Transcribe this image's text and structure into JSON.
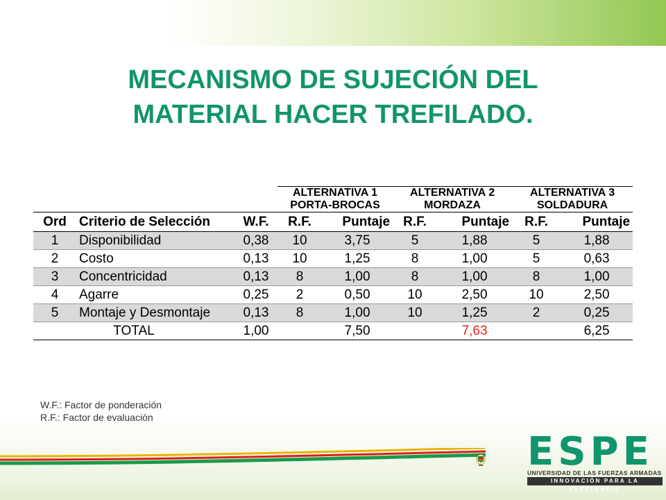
{
  "title": {
    "line1": "MECANISMO DE SUJECIÓN DEL",
    "line2": "MATERIAL HACER TREFILADO."
  },
  "table": {
    "alternatives": [
      {
        "line1": "ALTERNATIVA 1",
        "line2": "PORTA-BROCAS"
      },
      {
        "line1": "ALTERNATIVA 2",
        "line2": "MORDAZA"
      },
      {
        "line1": "ALTERNATIVA 3",
        "line2": "SOLDADURA"
      }
    ],
    "headers": [
      "Ord",
      "Criterio de Selección",
      "W.F.",
      "R.F.",
      "Puntaje",
      "R.F.",
      "Puntaje",
      "R.F.",
      "Puntaje"
    ],
    "rows": [
      [
        "1",
        "Disponibilidad",
        "0,38",
        "10",
        "3,75",
        "5",
        "1,88",
        "5",
        "1,88"
      ],
      [
        "2",
        "Costo",
        "0,13",
        "10",
        "1,25",
        "8",
        "1,00",
        "5",
        "0,63"
      ],
      [
        "3",
        "Concentricidad",
        "0,13",
        "8",
        "1,00",
        "8",
        "1,00",
        "8",
        "1,00"
      ],
      [
        "4",
        "Agarre",
        "0,25",
        "2",
        "0,50",
        "10",
        "2,50",
        "10",
        "2,50"
      ],
      [
        "5",
        "Montaje y Desmontaje",
        "0,13",
        "8",
        "1,00",
        "10",
        "1,25",
        "2",
        "0,25"
      ]
    ],
    "total": {
      "label": "TOTAL",
      "wf": "1,00",
      "alt1": "7,50",
      "alt2": "7,63",
      "alt3": "6,25"
    },
    "highlight_color": "#e3261b"
  },
  "notes": {
    "wf": "W.F.: Factor de ponderación",
    "rf": "R.F.: Factor de evaluación"
  },
  "logo": {
    "name": "ESPE",
    "university": "UNIVERSIDAD DE LAS FUERZAS ARMADAS",
    "tagline": "INNOVACIÓN PARA LA EXCELENCIA"
  },
  "colors": {
    "title": "#12946c",
    "shaded_row": "#d9d9d9",
    "band_green": "#93c852"
  }
}
